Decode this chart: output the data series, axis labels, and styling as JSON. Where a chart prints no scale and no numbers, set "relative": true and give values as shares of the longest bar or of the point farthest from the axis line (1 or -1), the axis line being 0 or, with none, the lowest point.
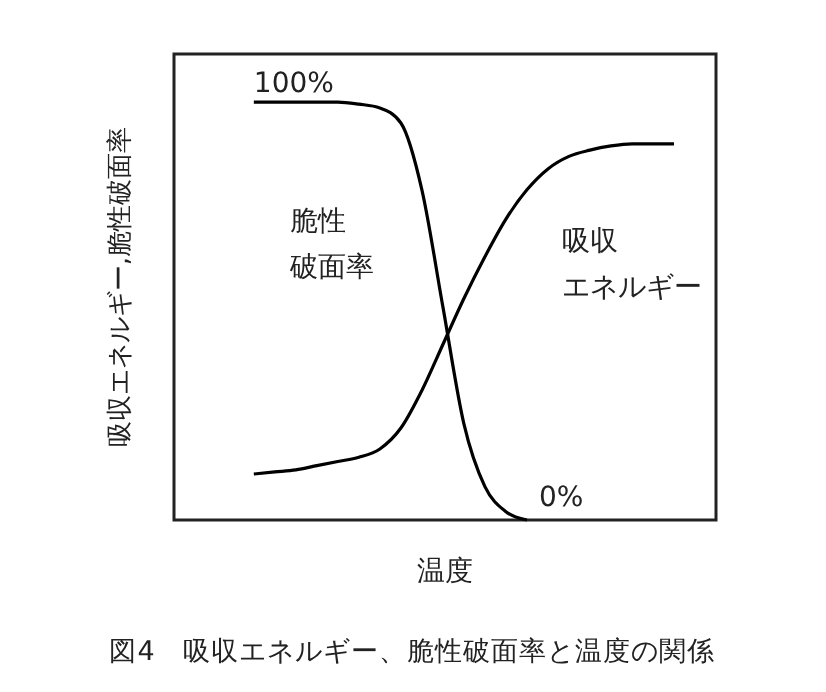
{
  "chart_data": {
    "type": "line",
    "relative": true,
    "title": "図4　吸収エネルギー、脆性破面率と温度の関係",
    "xlabel": "温度",
    "ylabel": "吸収エネルギー,脆性破面率",
    "categories": [
      null,
      null,
      null,
      null,
      null,
      null,
      null,
      null,
      null,
      null,
      null,
      null,
      null,
      null,
      null,
      null,
      null,
      null,
      null,
      null,
      null
    ],
    "series": [
      {
        "name": "脆性破面率",
        "color": "#000000",
        "values": [
          1,
          1,
          1,
          1,
          1,
          0.995,
          0.986,
          0.95,
          0.79,
          0.51,
          0.23,
          0.08,
          0.02,
          0,
          null,
          null,
          null,
          null,
          null,
          null,
          null
        ]
      },
      {
        "name": "吸収エネルギー",
        "color": "#000000",
        "values": [
          0.11,
          0.115,
          0.12,
          0.13,
          0.14,
          0.15,
          0.17,
          0.22,
          0.31,
          0.42,
          0.53,
          0.63,
          0.72,
          0.79,
          0.84,
          0.87,
          0.885,
          0.895,
          0.9,
          0.9,
          0.9
        ]
      }
    ],
    "annotations": [
      "100%",
      "0%"
    ],
    "marker": "none",
    "line_style": "solid"
  }
}
